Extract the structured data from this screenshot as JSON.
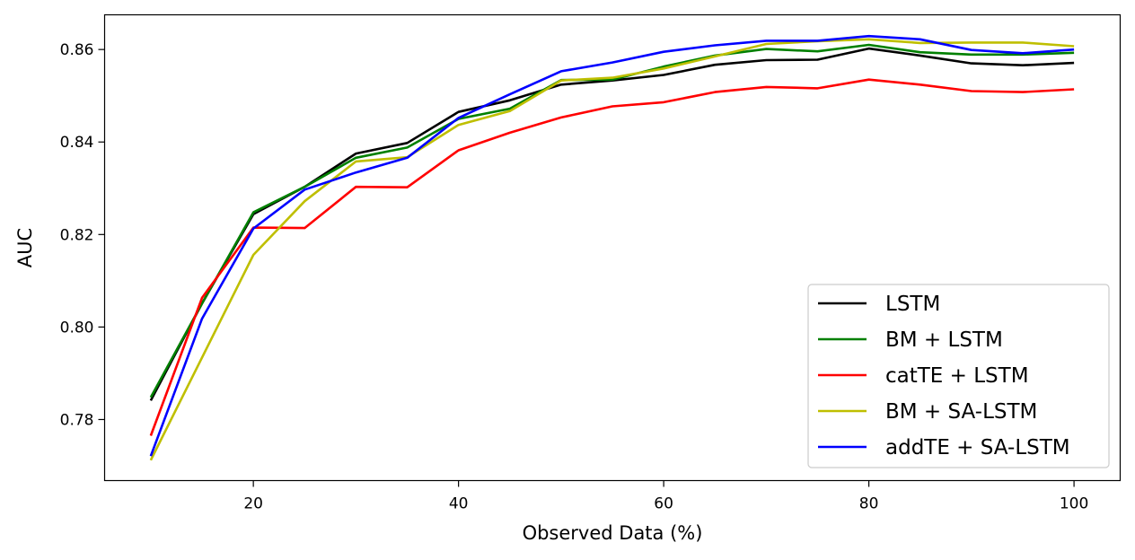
{
  "chart_data": {
    "type": "line",
    "xlabel": "Observed Data (%)",
    "ylabel": "AUC",
    "xlim": [
      5.5,
      104.5
    ],
    "ylim": [
      0.7668,
      0.8675
    ],
    "xticks": [
      20,
      40,
      60,
      80,
      100
    ],
    "xtick_labels": [
      "20",
      "40",
      "60",
      "80",
      "100"
    ],
    "yticks": [
      0.78,
      0.8,
      0.82,
      0.84,
      0.86
    ],
    "ytick_labels": [
      "0.78",
      "0.80",
      "0.82",
      "0.84",
      "0.86"
    ],
    "grid": false,
    "legend_position": "lower-right",
    "x": [
      10,
      15,
      20,
      25,
      30,
      35,
      40,
      45,
      50,
      55,
      60,
      65,
      70,
      75,
      80,
      85,
      90,
      95,
      100
    ],
    "series": [
      {
        "name": "LSTM",
        "color": "#000000",
        "values": [
          0.7841,
          0.8051,
          0.8244,
          0.8303,
          0.8375,
          0.8398,
          0.8465,
          0.849,
          0.8524,
          0.8533,
          0.8545,
          0.8567,
          0.8577,
          0.8578,
          0.8602,
          0.8587,
          0.857,
          0.8566,
          0.8571
        ]
      },
      {
        "name": "BM + LSTM",
        "color": "#008000",
        "values": [
          0.7848,
          0.8051,
          0.8248,
          0.8303,
          0.8366,
          0.8388,
          0.845,
          0.8472,
          0.8534,
          0.8535,
          0.8563,
          0.8587,
          0.8601,
          0.8596,
          0.861,
          0.8594,
          0.8589,
          0.8589,
          0.8593
        ]
      },
      {
        "name": "catTE + LSTM",
        "color": "#ff0000",
        "values": [
          0.7765,
          0.8063,
          0.8215,
          0.8214,
          0.8303,
          0.8302,
          0.8382,
          0.842,
          0.8453,
          0.8477,
          0.8486,
          0.8508,
          0.8519,
          0.8516,
          0.8535,
          0.8524,
          0.851,
          0.8508,
          0.8514
        ]
      },
      {
        "name": "BM + SA-LSTM",
        "color": "#bfbf00",
        "values": [
          0.7712,
          0.7934,
          0.8156,
          0.8272,
          0.8358,
          0.8367,
          0.8437,
          0.8467,
          0.8533,
          0.8539,
          0.8559,
          0.8585,
          0.8612,
          0.8618,
          0.8622,
          0.8614,
          0.8615,
          0.8615,
          0.8607
        ]
      },
      {
        "name": "addTE + SA-LSTM",
        "color": "#0000ff",
        "values": [
          0.7721,
          0.8018,
          0.8213,
          0.8297,
          0.8334,
          0.8366,
          0.8452,
          0.8503,
          0.8553,
          0.8572,
          0.8595,
          0.8609,
          0.8619,
          0.8619,
          0.8629,
          0.8622,
          0.8599,
          0.8592,
          0.86
        ]
      }
    ]
  }
}
